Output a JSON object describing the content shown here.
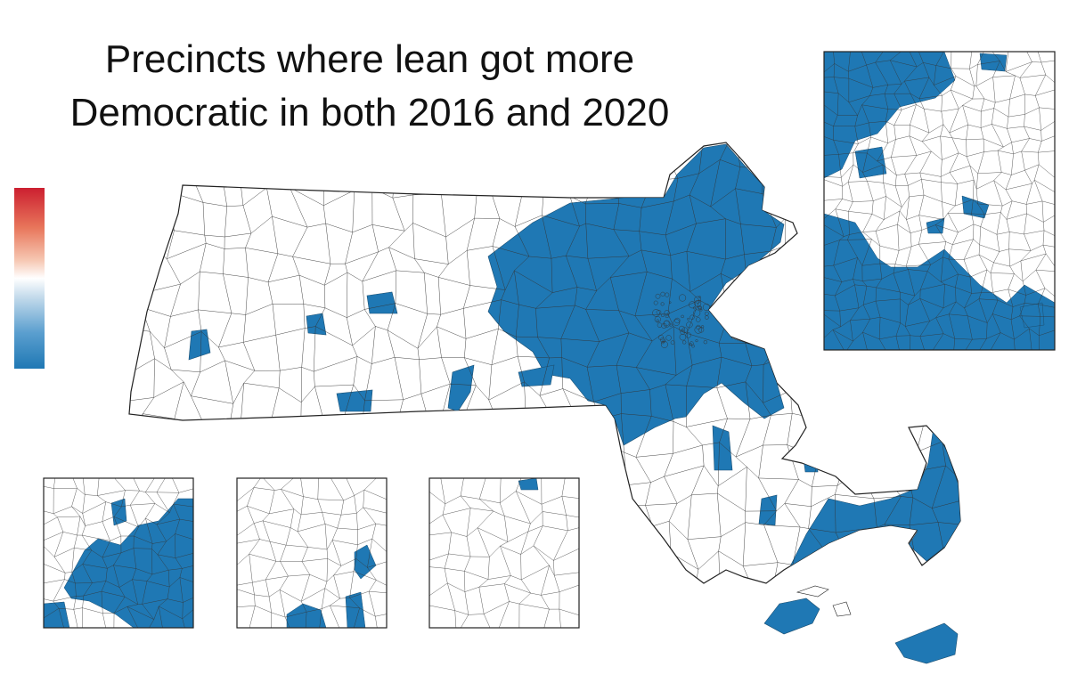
{
  "title": {
    "line1": "Precincts where lean got more",
    "line2": "Democratic in both 2016 and 2020"
  },
  "colors": {
    "highlight": "#1f78b4",
    "precinct_fill": "#ffffff",
    "precinct_border": "#222222",
    "scale_top": "#cc1f30",
    "scale_mid": "#ffffff",
    "scale_bottom": "#1f78b4"
  },
  "legend": {
    "type": "diverging-color-scale",
    "labels": []
  },
  "map": {
    "region": "Massachusetts",
    "highlighted_category": "lean more Democratic in 2016 and 2020",
    "insets": [
      "greater-boston",
      "springfield-area",
      "worcester-area",
      "southeast-area"
    ]
  }
}
